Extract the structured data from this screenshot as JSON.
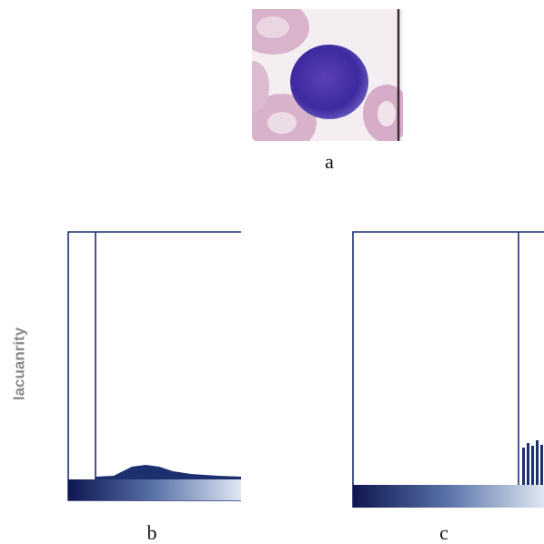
{
  "y_label": "lacuanrity",
  "panels": [
    {
      "label": "a"
    },
    {
      "label": "b"
    },
    {
      "label": "c"
    }
  ]
}
